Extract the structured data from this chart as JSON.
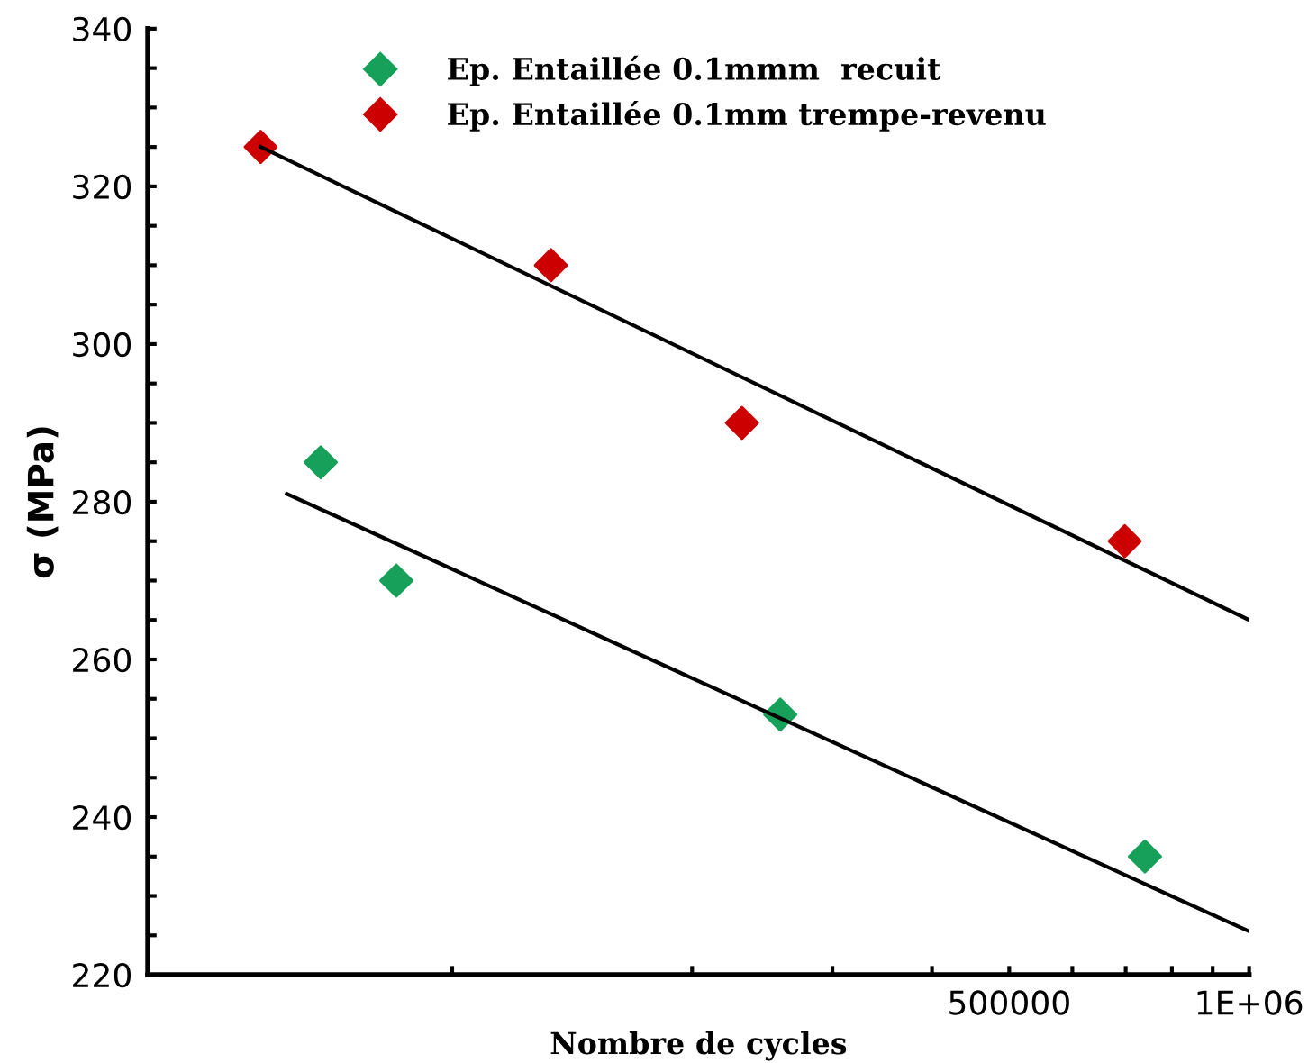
{
  "chart_data": {
    "type": "scatter",
    "xlabel": "Nombre de cycles",
    "ylabel": "σ (MPa)",
    "log": "x",
    "xlim": [
      41500,
      1000000
    ],
    "ylim": [
      220,
      340
    ],
    "xticks": [
      {
        "value": 100000,
        "label": null
      },
      {
        "value": 200000,
        "label": null
      },
      {
        "value": 300000,
        "label": null
      },
      {
        "value": 400000,
        "label": null
      },
      500000,
      {
        "value": 600000,
        "label": null
      },
      {
        "value": 700000,
        "label": null
      },
      {
        "value": 800000,
        "label": null
      },
      {
        "value": 900000,
        "label": null
      },
      {
        "value": 1000000,
        "label": "1E+06"
      }
    ],
    "yticks": [
      220,
      {
        "value": 225,
        "label": null
      },
      {
        "value": 230,
        "label": null
      },
      {
        "value": 235,
        "label": null
      },
      240,
      {
        "value": 245,
        "label": null
      },
      {
        "value": 250,
        "label": null
      },
      {
        "value": 255,
        "label": null
      },
      260,
      {
        "value": 265,
        "label": null
      },
      {
        "value": 270,
        "label": null
      },
      {
        "value": 275,
        "label": null
      },
      280,
      {
        "value": 285,
        "label": null
      },
      {
        "value": 290,
        "label": null
      },
      {
        "value": 295,
        "label": null
      },
      300,
      {
        "value": 305,
        "label": null
      },
      {
        "value": 310,
        "label": null
      },
      {
        "value": 315,
        "label": null
      },
      320,
      {
        "value": 325,
        "label": null
      },
      {
        "value": 330,
        "label": null
      },
      {
        "value": 335,
        "label": null
      },
      340
    ],
    "marker": "diamond",
    "legend": "top",
    "grid": false,
    "series": [
      {
        "name": "Ep. Entaillée 0.1mmm  recuit",
        "color": "#16a05a",
        "x": [
          68400,
          85100,
          258000,
          740000
        ],
        "values": [
          285,
          270,
          253,
          235
        ]
      },
      {
        "name": "Ep. Entaillée 0.1mm trempe-revenu",
        "color": "#cc0000",
        "x": [
          57500,
          133000,
          231000,
          698000
        ],
        "values": [
          325,
          310,
          290,
          275
        ]
      },
      {
        "type": "line",
        "color": "#000000",
        "x": [
          62000,
          1000000
        ],
        "values": [
          281,
          225.5
        ],
        "marker": "none"
      },
      {
        "type": "line",
        "color": "#000000",
        "x": [
          57500,
          1000000
        ],
        "values": [
          325,
          265
        ],
        "marker": "none"
      }
    ]
  }
}
